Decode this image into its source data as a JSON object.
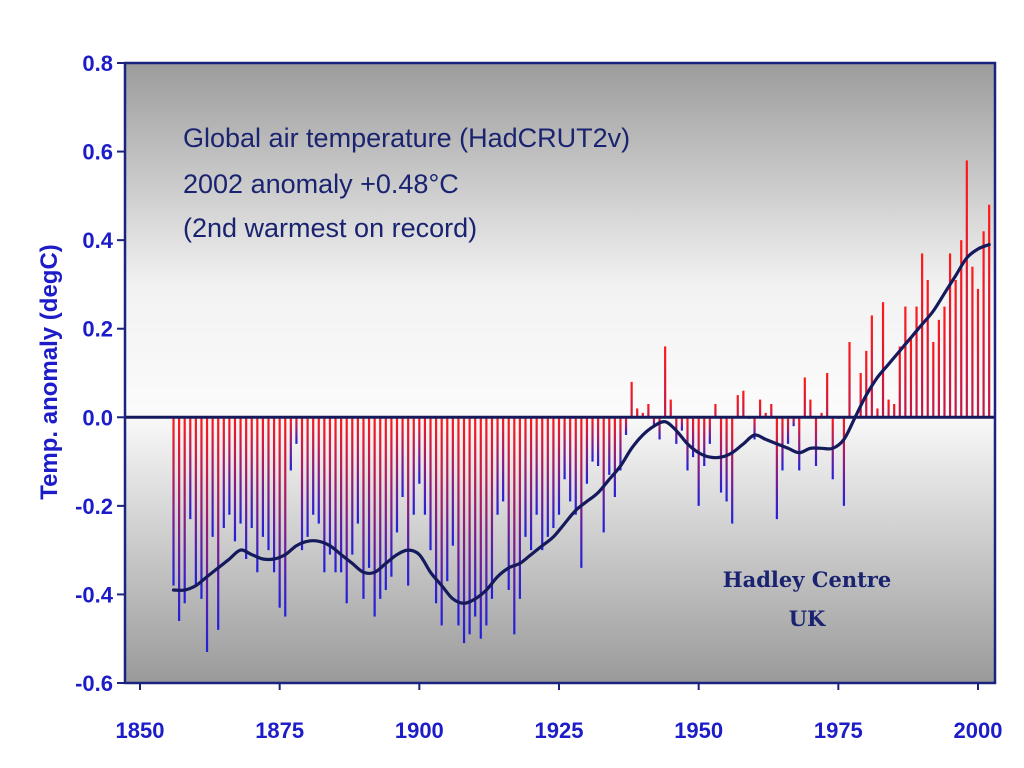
{
  "chart_data": {
    "type": "bar",
    "title": "",
    "xlabel": "",
    "ylabel": "Temp. anomaly (degC)",
    "xlim": [
      1850,
      2003
    ],
    "ylim": [
      -0.6,
      0.8
    ],
    "x_ticks": [
      "1850",
      "1875",
      "1900",
      "1925",
      "1950",
      "1975",
      "2000"
    ],
    "y_ticks": [
      "0.8",
      "0.6",
      "0.4",
      "0.2",
      "0.0",
      "-0.2",
      "-0.4",
      "-0.6"
    ],
    "annotation_lines": [
      "Global air temperature (HadCRUT2v)",
      "2002 anomaly +0.48°C",
      "(2nd warmest on record)"
    ],
    "credit_lines": [
      "Hadley Centre",
      "UK"
    ],
    "colors": {
      "warm_bar": "#ff1a1a",
      "cool_bar": "#2020dd",
      "smooth_line": "#141a5c",
      "plot_background_top": "#f4f4f4",
      "plot_background_bottom": "#9a9a9a",
      "frame": "#1a237e",
      "tick_text": "#1c1cc8"
    },
    "x": [
      1856,
      1857,
      1858,
      1859,
      1860,
      1861,
      1862,
      1863,
      1864,
      1865,
      1866,
      1867,
      1868,
      1869,
      1870,
      1871,
      1872,
      1873,
      1874,
      1875,
      1876,
      1877,
      1878,
      1879,
      1880,
      1881,
      1882,
      1883,
      1884,
      1885,
      1886,
      1887,
      1888,
      1889,
      1890,
      1891,
      1892,
      1893,
      1894,
      1895,
      1896,
      1897,
      1898,
      1899,
      1900,
      1901,
      1902,
      1903,
      1904,
      1905,
      1906,
      1907,
      1908,
      1909,
      1910,
      1911,
      1912,
      1913,
      1914,
      1915,
      1916,
      1917,
      1918,
      1919,
      1920,
      1921,
      1922,
      1923,
      1924,
      1925,
      1926,
      1927,
      1928,
      1929,
      1930,
      1931,
      1932,
      1933,
      1934,
      1935,
      1936,
      1937,
      1938,
      1939,
      1940,
      1941,
      1942,
      1943,
      1944,
      1945,
      1946,
      1947,
      1948,
      1949,
      1950,
      1951,
      1952,
      1953,
      1954,
      1955,
      1956,
      1957,
      1958,
      1959,
      1960,
      1961,
      1962,
      1963,
      1964,
      1965,
      1966,
      1967,
      1968,
      1969,
      1970,
      1971,
      1972,
      1973,
      1974,
      1975,
      1976,
      1977,
      1978,
      1979,
      1980,
      1981,
      1982,
      1983,
      1984,
      1985,
      1986,
      1987,
      1988,
      1989,
      1990,
      1991,
      1992,
      1993,
      1994,
      1995,
      1996,
      1997,
      1998,
      1999,
      2000,
      2001,
      2002
    ],
    "series": [
      {
        "name": "",
        "values": [
          -0.38,
          -0.46,
          -0.42,
          -0.23,
          -0.38,
          -0.41,
          -0.53,
          -0.27,
          -0.48,
          -0.25,
          -0.22,
          -0.28,
          -0.24,
          -0.32,
          -0.25,
          -0.35,
          -0.27,
          -0.3,
          -0.35,
          -0.43,
          -0.45,
          -0.12,
          -0.06,
          -0.3,
          -0.27,
          -0.22,
          -0.24,
          -0.35,
          -0.31,
          -0.35,
          -0.35,
          -0.42,
          -0.31,
          -0.24,
          -0.41,
          -0.34,
          -0.45,
          -0.41,
          -0.39,
          -0.36,
          -0.26,
          -0.18,
          -0.38,
          -0.22,
          -0.15,
          -0.22,
          -0.3,
          -0.42,
          -0.47,
          -0.37,
          -0.29,
          -0.47,
          -0.51,
          -0.49,
          -0.45,
          -0.5,
          -0.47,
          -0.41,
          -0.22,
          -0.19,
          -0.39,
          -0.49,
          -0.41,
          -0.27,
          -0.3,
          -0.22,
          -0.3,
          -0.27,
          -0.25,
          -0.22,
          -0.14,
          -0.19,
          -0.22,
          -0.34,
          -0.15,
          -0.1,
          -0.11,
          -0.26,
          -0.13,
          -0.18,
          -0.12,
          -0.04,
          0.08,
          0.02,
          0.01,
          0.03,
          -0.02,
          -0.05,
          0.16,
          0.04,
          -0.06,
          -0.03,
          -0.12,
          -0.09,
          -0.2,
          -0.11,
          -0.06,
          0.03,
          -0.17,
          -0.19,
          -0.24,
          0.05,
          0.06,
          0.0,
          -0.05,
          0.04,
          0.01,
          0.03,
          -0.23,
          -0.12,
          -0.06,
          -0.02,
          -0.12,
          0.09,
          0.04,
          -0.11,
          0.01,
          0.1,
          -0.14,
          0.0,
          -0.2,
          0.17,
          0.0,
          0.1,
          0.15,
          0.23,
          0.02,
          0.26,
          0.04,
          0.03,
          0.16,
          0.25,
          0.18,
          0.25,
          0.37,
          0.31,
          0.17,
          0.22,
          0.25,
          0.37,
          0.31,
          0.4,
          0.58,
          0.34,
          0.29,
          0.42,
          0.48
        ]
      },
      {
        "name": "",
        "type": "line",
        "x": [
          1856,
          1858,
          1860,
          1862,
          1864,
          1866,
          1868,
          1870,
          1872,
          1874,
          1876,
          1878,
          1880,
          1882,
          1884,
          1886,
          1888,
          1890,
          1892,
          1894,
          1896,
          1898,
          1900,
          1902,
          1904,
          1906,
          1908,
          1910,
          1912,
          1914,
          1916,
          1918,
          1920,
          1922,
          1924,
          1926,
          1928,
          1930,
          1932,
          1934,
          1936,
          1938,
          1940,
          1942,
          1944,
          1946,
          1948,
          1950,
          1952,
          1954,
          1956,
          1958,
          1960,
          1962,
          1964,
          1966,
          1968,
          1970,
          1972,
          1974,
          1976,
          1978,
          1980,
          1982,
          1984,
          1986,
          1988,
          1990,
          1992,
          1994,
          1996,
          1998,
          2000,
          2002
        ],
        "values": [
          -0.39,
          -0.39,
          -0.38,
          -0.36,
          -0.34,
          -0.32,
          -0.3,
          -0.31,
          -0.32,
          -0.32,
          -0.31,
          -0.29,
          -0.28,
          -0.28,
          -0.29,
          -0.31,
          -0.33,
          -0.35,
          -0.35,
          -0.33,
          -0.31,
          -0.3,
          -0.31,
          -0.35,
          -0.38,
          -0.41,
          -0.42,
          -0.41,
          -0.39,
          -0.36,
          -0.34,
          -0.33,
          -0.31,
          -0.29,
          -0.27,
          -0.24,
          -0.21,
          -0.19,
          -0.17,
          -0.14,
          -0.11,
          -0.07,
          -0.04,
          -0.02,
          -0.01,
          -0.03,
          -0.06,
          -0.08,
          -0.09,
          -0.09,
          -0.08,
          -0.06,
          -0.04,
          -0.05,
          -0.06,
          -0.07,
          -0.08,
          -0.07,
          -0.07,
          -0.07,
          -0.05,
          0.0,
          0.05,
          0.09,
          0.12,
          0.15,
          0.18,
          0.21,
          0.24,
          0.28,
          0.32,
          0.36,
          0.38,
          0.39
        ]
      }
    ]
  }
}
